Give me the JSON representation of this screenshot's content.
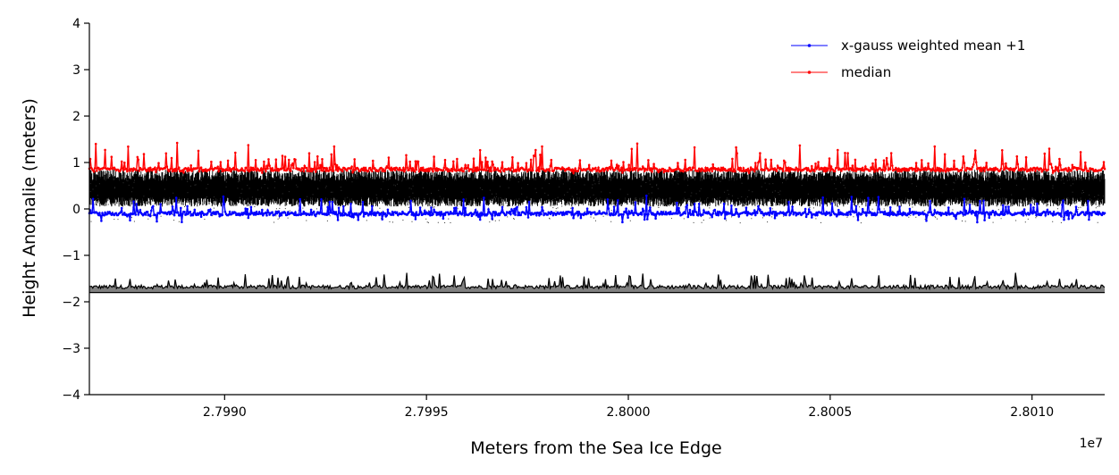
{
  "chart_data": {
    "type": "line",
    "title": "",
    "xlabel": "Meters from the Sea Ice Edge",
    "ylabel": "Height Anomalie (meters)",
    "x_offset_label": "1e7",
    "x_scale_factor": 10000000,
    "xlim": [
      27986650,
      28011800
    ],
    "ylim": [
      -4,
      4
    ],
    "xticks": [
      27990000,
      27995000,
      28000000,
      28005000,
      28010000
    ],
    "xtick_labels": [
      "2.7990",
      "2.7995",
      "2.8000",
      "2.8005",
      "2.8010"
    ],
    "yticks": [
      -4,
      -3,
      -2,
      -1,
      0,
      1,
      2,
      3,
      4
    ],
    "ytick_labels": [
      "−4",
      "−3",
      "−2",
      "−1",
      "0",
      "1",
      "2",
      "3",
      "4"
    ],
    "grid": false,
    "legend_position": "top-right",
    "series": [
      {
        "name": "x-gauss weighted mean +1",
        "color": "#0000ff",
        "style": "line-with-dots",
        "baseline": -0.1,
        "spike_up_max": 0.35,
        "spike_down_max": 0.15
      },
      {
        "name": "median",
        "color": "#ff0000",
        "style": "line-with-dots",
        "baseline": 0.85,
        "spike_up_max": 0.55,
        "spike_down_max": 0.05
      },
      {
        "name": "",
        "color": "#000000",
        "style": "dense-band",
        "band_low": 0.05,
        "band_high": 0.85,
        "outer_low": -0.3,
        "outer_high": 0.8
      },
      {
        "name": "",
        "color": "#000000",
        "fill_color": "#808080",
        "style": "filled-line",
        "base": -1.8,
        "mean": -1.68,
        "spike_max": -1.4
      }
    ]
  }
}
